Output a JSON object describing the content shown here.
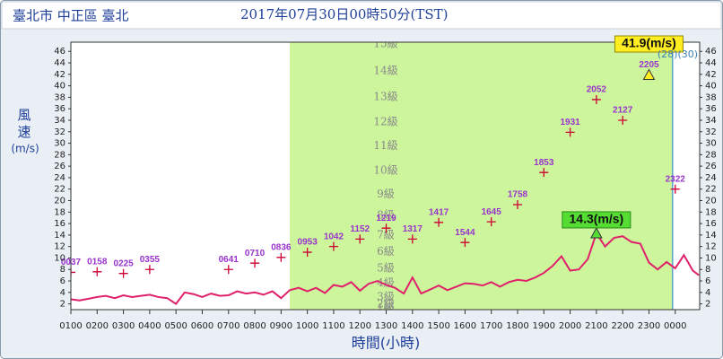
{
  "chart_data": {
    "type": "line",
    "location": "臺北市 中正區 臺北",
    "title": "2017年07月30日00時50分(TST)",
    "y_label": "風速",
    "y_unit": "(m/s)",
    "x_label": "時間(小時)",
    "xlim": [
      1,
      24.93
    ],
    "ylim": [
      1,
      47.6
    ],
    "xticks": [
      {
        "value": 1,
        "label": "0100"
      },
      {
        "value": 2,
        "label": "0200"
      },
      {
        "value": 3,
        "label": "0300"
      },
      {
        "value": 4,
        "label": "0400"
      },
      {
        "value": 5,
        "label": "0500"
      },
      {
        "value": 6,
        "label": "0600"
      },
      {
        "value": 7,
        "label": "0700"
      },
      {
        "value": 8,
        "label": "0800"
      },
      {
        "value": 9,
        "label": "0900"
      },
      {
        "value": 10,
        "label": "1000"
      },
      {
        "value": 11,
        "label": "1100"
      },
      {
        "value": 12,
        "label": "1200"
      },
      {
        "value": 13,
        "label": "1300"
      },
      {
        "value": 14,
        "label": "1400"
      },
      {
        "value": 15,
        "label": "1500"
      },
      {
        "value": 16,
        "label": "1600"
      },
      {
        "value": 17,
        "label": "1700"
      },
      {
        "value": 18,
        "label": "1800"
      },
      {
        "value": 19,
        "label": "1900"
      },
      {
        "value": 20,
        "label": "2000"
      },
      {
        "value": 21,
        "label": "2100"
      },
      {
        "value": 22,
        "label": "2200"
      },
      {
        "value": 23,
        "label": "2300"
      },
      {
        "value": 24,
        "label": "0000"
      }
    ],
    "yticks": [
      2,
      4,
      6,
      8,
      10,
      12,
      14,
      16,
      18,
      20,
      22,
      24,
      26,
      28,
      30,
      32,
      34,
      36,
      38,
      40,
      42,
      44,
      46
    ],
    "shaded_range": [
      9.33,
      23.9
    ],
    "shade_color": "#ccf59c",
    "now_line": 23.9,
    "now_color": "#3a8fd0",
    "level_labels": [
      {
        "label": "15級",
        "value": 47.3
      },
      {
        "label": "14級",
        "value": 42.6
      },
      {
        "label": "13級",
        "value": 38.1
      },
      {
        "label": "12級",
        "value": 33.7
      },
      {
        "label": "11級",
        "value": 29.5
      },
      {
        "label": "10級",
        "value": 25.2
      },
      {
        "label": "9級",
        "value": 21.1
      },
      {
        "label": "8級",
        "value": 17.4
      },
      {
        "label": "7級",
        "value": 14.0
      },
      {
        "label": "6級",
        "value": 11.1
      },
      {
        "label": "5級",
        "value": 8.2
      },
      {
        "label": "4級",
        "value": 5.6
      },
      {
        "label": "3級",
        "value": 3.2
      },
      {
        "label": "2級",
        "value": 1.9
      },
      {
        "label": "1級",
        "value": 1.2
      }
    ],
    "line": {
      "color": "#e0206a",
      "x": [
        1,
        1.33,
        1.67,
        2,
        2.33,
        2.67,
        3,
        3.33,
        3.67,
        4,
        4.33,
        4.67,
        5,
        5.33,
        5.67,
        6,
        6.33,
        6.67,
        7,
        7.33,
        7.67,
        8,
        8.33,
        8.67,
        9,
        9.33,
        9.67,
        10,
        10.33,
        10.67,
        11,
        11.33,
        11.67,
        12,
        12.33,
        12.67,
        13,
        13.33,
        13.67,
        14,
        14.33,
        14.67,
        15,
        15.33,
        15.67,
        16,
        16.33,
        16.67,
        17,
        17.33,
        17.67,
        18,
        18.33,
        18.67,
        19,
        19.33,
        19.67,
        20,
        20.33,
        20.67,
        21,
        21.33,
        21.67,
        22,
        22.33,
        22.67,
        23,
        23.33,
        23.67,
        24,
        24.33,
        24.67,
        24.9
      ],
      "values": [
        2.8,
        2.6,
        2.9,
        3.2,
        3.4,
        3.0,
        3.5,
        3.2,
        3.4,
        3.6,
        3.2,
        3.0,
        2.0,
        4.0,
        3.7,
        3.2,
        3.8,
        3.4,
        3.5,
        4.2,
        3.8,
        4.0,
        3.6,
        4.2,
        3.0,
        4.4,
        4.8,
        4.2,
        4.8,
        3.9,
        5.3,
        5.0,
        5.8,
        4.3,
        5.5,
        6.0,
        5.3,
        4.8,
        3.8,
        6.6,
        3.8,
        4.5,
        5.2,
        4.4,
        5.0,
        5.6,
        5.5,
        5.2,
        5.8,
        5.0,
        5.8,
        6.2,
        6.0,
        6.6,
        7.4,
        8.6,
        10.3,
        7.8,
        8.0,
        9.8,
        14.3,
        12.0,
        13.5,
        13.8,
        12.8,
        12.5,
        9.2,
        8.0,
        9.3,
        8.2,
        10.5,
        7.8,
        7.0
      ]
    },
    "points": {
      "color": "#cc0033",
      "label_color": "#9933cc",
      "x": [
        1,
        2,
        3,
        4,
        7,
        8,
        9,
        10,
        11,
        12,
        13,
        14,
        15,
        16,
        17,
        18,
        19,
        20,
        21,
        22,
        23,
        24
      ],
      "labels": [
        "0037",
        "0158",
        "0225",
        "0355",
        "0641",
        "0710",
        "0836",
        "0953",
        "1042",
        "1152",
        "1219",
        "1317",
        "1417",
        "1544",
        "1645",
        "1758",
        "1853",
        "1931",
        "2052",
        "2127",
        "2205",
        "2322"
      ],
      "values": [
        7.5,
        7.6,
        7.3,
        8.0,
        8.0,
        9.1,
        10.1,
        11.0,
        12.0,
        13.3,
        15.2,
        13.3,
        16.2,
        12.7,
        16.3,
        19.3,
        24.9,
        31.9,
        37.6,
        34.0,
        41.9,
        22.0
      ]
    },
    "sustained_max": {
      "x": 21,
      "value": 14.3,
      "label": "14.3(m/s)",
      "color": "#55dd33"
    },
    "gust_max": {
      "x": 23,
      "value": 41.9,
      "label": "41.9(m/s)",
      "color": "#ffee22",
      "note": "(28)(30)"
    }
  }
}
